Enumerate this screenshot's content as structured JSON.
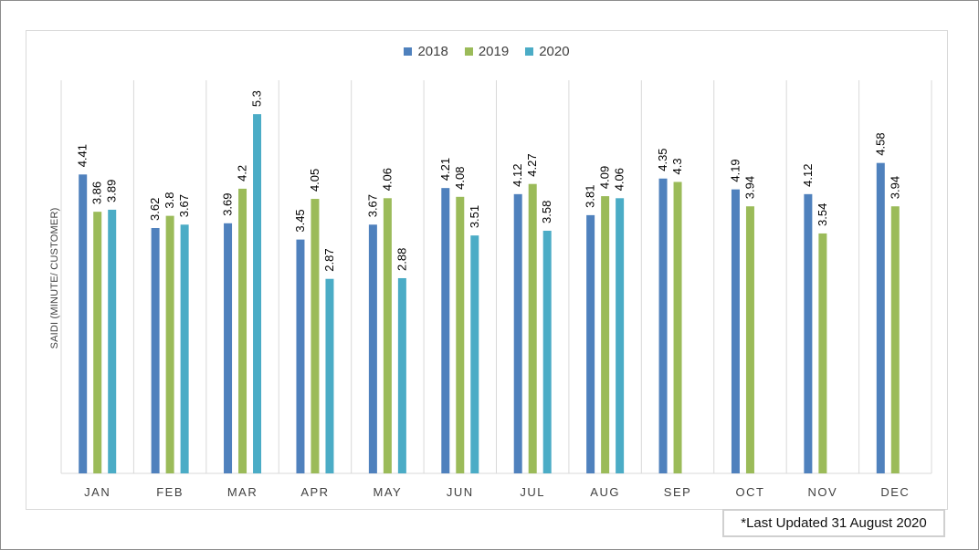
{
  "footnote": "*Last Updated 31 August 2020",
  "chart_data": {
    "type": "bar",
    "title": "",
    "xlabel": "",
    "ylabel": "SAIDI (MINUTE/ CUSTOMER)",
    "ylim": [
      0,
      5.8
    ],
    "grid": "vertical category separators",
    "legend_position": "top-center",
    "categories": [
      "JAN",
      "FEB",
      "MAR",
      "APR",
      "MAY",
      "JUN",
      "JUL",
      "AUG",
      "SEP",
      "OCT",
      "NOV",
      "DEC"
    ],
    "series": [
      {
        "name": "2018",
        "color": "#4f81bd",
        "values": [
          4.41,
          3.62,
          3.69,
          3.45,
          3.67,
          4.21,
          4.12,
          3.81,
          4.35,
          4.19,
          4.12,
          4.58
        ]
      },
      {
        "name": "2019",
        "color": "#9bbb59",
        "values": [
          3.86,
          3.8,
          4.2,
          4.05,
          4.06,
          4.08,
          4.27,
          4.09,
          4.3,
          3.94,
          3.54,
          3.94
        ]
      },
      {
        "name": "2020",
        "color": "#4bacc6",
        "values": [
          3.89,
          3.67,
          5.3,
          2.87,
          2.88,
          3.51,
          3.58,
          4.06,
          null,
          null,
          null,
          null
        ]
      }
    ]
  }
}
